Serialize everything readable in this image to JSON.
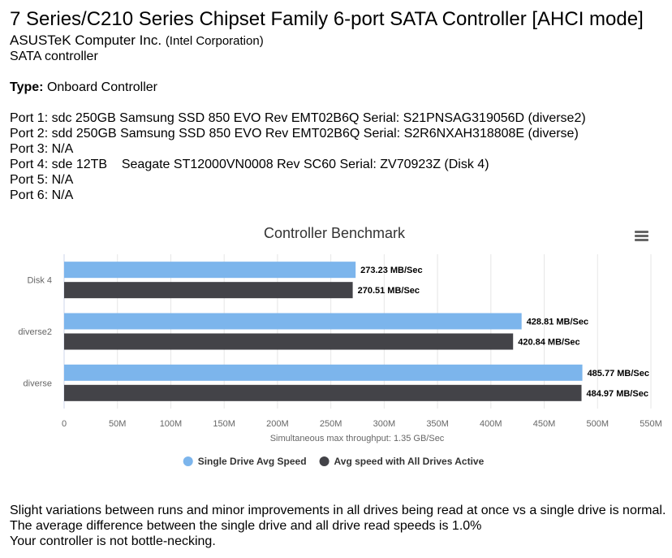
{
  "device": {
    "title": "7 Series/C210 Series Chipset Family 6-port SATA Controller [AHCI mode]",
    "vendor": "ASUSTeK Computer Inc.",
    "vendor_sub": "(Intel Corporation)",
    "class": "SATA controller",
    "type_label": "Type:",
    "type_value": "Onboard Controller"
  },
  "ports": [
    "Port 1: sdc 250GB Samsung SSD 850 EVO Rev EMT02B6Q Serial: S21PNSAG319056D (diverse2)",
    "Port 2: sdd 250GB Samsung SSD 850 EVO Rev EMT02B6Q Serial: S2R6NXAH318808E (diverse)",
    "Port 3: N/A",
    "Port 4: sde 12TB    Seagate ST12000VN0008 Rev SC60 Serial: ZV70923Z (Disk 4)",
    "Port 5: N/A",
    "Port 6: N/A"
  ],
  "chart_data": {
    "type": "bar",
    "orientation": "horizontal",
    "title": "Controller Benchmark",
    "categories": [
      "Disk 4",
      "diverse2",
      "diverse"
    ],
    "series": [
      {
        "name": "Single Drive Avg Speed",
        "values": [
          273.23,
          428.81,
          485.77
        ],
        "labels": [
          "273.23 MB/Sec",
          "428.81 MB/Sec",
          "485.77 MB/Sec"
        ],
        "color": "#7cb5ec"
      },
      {
        "name": "Avg speed with All Drives Active",
        "values": [
          270.51,
          420.84,
          484.97
        ],
        "labels": [
          "270.51 MB/Sec",
          "420.84 MB/Sec",
          "484.97 MB/Sec"
        ],
        "color": "#434348"
      }
    ],
    "xlim": [
      0,
      550
    ],
    "xticks": [
      0,
      50,
      100,
      150,
      200,
      250,
      300,
      350,
      400,
      450,
      500,
      550
    ],
    "xtick_labels": [
      "0",
      "50M",
      "100M",
      "150M",
      "200M",
      "250M",
      "300M",
      "350M",
      "400M",
      "450M",
      "500M",
      "550M"
    ],
    "xlabel": "Simultaneous max throughput: 1.35 GB/Sec",
    "grid": true,
    "legend_position": "bottom-center"
  },
  "footer": {
    "lines": [
      "Slight variations between runs and minor improvements in all drives being read at once vs a single drive is normal.",
      "The average difference between the single drive and all drive read speeds is 1.0%",
      "Your controller is not bottle-necking."
    ]
  }
}
